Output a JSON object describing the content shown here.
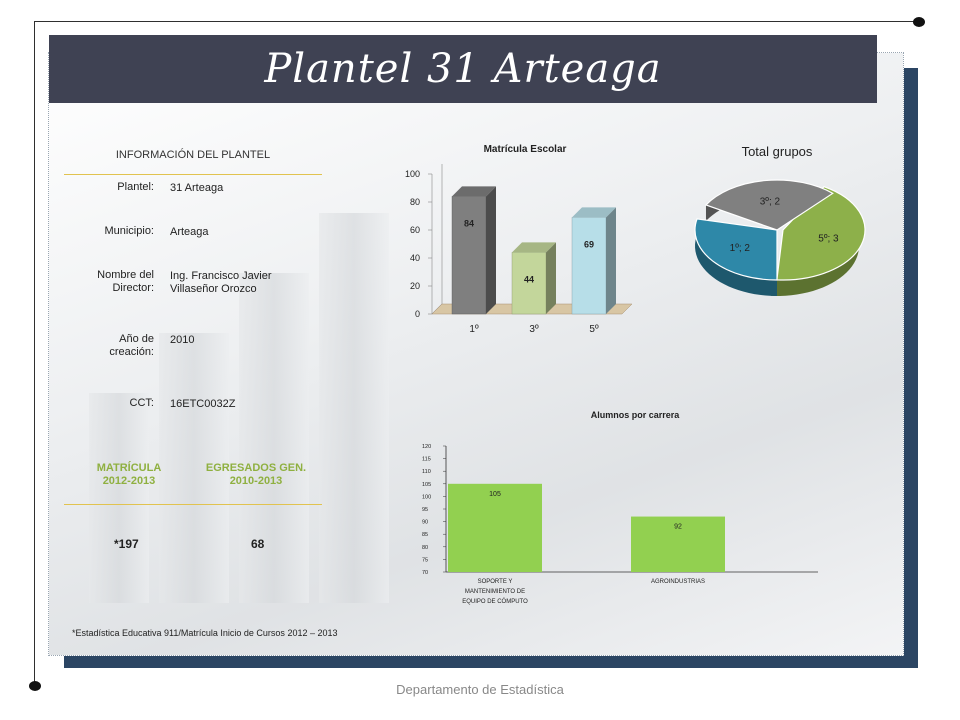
{
  "title": "Plantel 31 Arteaga",
  "info": {
    "header": "INFORMACIÓN DEL PLANTEL",
    "rows": [
      {
        "label": "Plantel:",
        "value": "31 Arteaga"
      },
      {
        "label": "Municipio:",
        "value": "Arteaga"
      },
      {
        "label": "Nombre del Director:",
        "value": "Ing. Francisco Javier Villaseñor Orozco"
      },
      {
        "label": "Año de creación:",
        "value": "2010"
      },
      {
        "label": "CCT:",
        "value": "16ETC0032Z"
      }
    ],
    "matricula_header": "MATRÍCULA 2012-2013",
    "egresados_header": "EGRESADOS GEN. 2010-2013",
    "matricula_value": "*197",
    "egresados_value": "68"
  },
  "footnote": "*Estadística Educativa 911/Matrícula Inicio de Cursos 2012 – 2013",
  "department": "Departamento de Estadística",
  "chart_data": [
    {
      "type": "bar",
      "title": "Matrícula Escolar",
      "categories": [
        "1º",
        "3º",
        "5º"
      ],
      "values": [
        84,
        44,
        69
      ],
      "ylim": [
        0,
        100
      ],
      "yticks": [
        "0",
        "20",
        "40",
        "60",
        "80",
        "100"
      ],
      "colors": [
        "#7f7f7f",
        "#c3d69b",
        "#b7dee8"
      ]
    },
    {
      "type": "pie",
      "title": "Total grupos",
      "labels": [
        "5º; 3",
        "1º; 2",
        "3º; 2"
      ],
      "values": [
        3,
        2,
        2
      ],
      "colors": [
        "#8db04a",
        "#2e88a8",
        "#808080"
      ]
    },
    {
      "type": "bar",
      "title": "Alumnos por carrera",
      "categories": [
        "SOPORTE Y MANTENIMIENTO DE EQUIPO DE CÓMPUTO",
        "AGROINDUSTRIAS"
      ],
      "category_lines": [
        [
          "SOPORTE Y",
          "MANTENIMIENTO DE",
          "EQUIPO DE CÓMPUTO"
        ],
        [
          "AGROINDUSTRIAS"
        ]
      ],
      "values": [
        105,
        92
      ],
      "ylim": [
        70,
        120
      ],
      "yticks": [
        "70",
        "75",
        "80",
        "85",
        "90",
        "95",
        "100",
        "105",
        "110",
        "115",
        "120"
      ],
      "color": "#92d050"
    }
  ]
}
